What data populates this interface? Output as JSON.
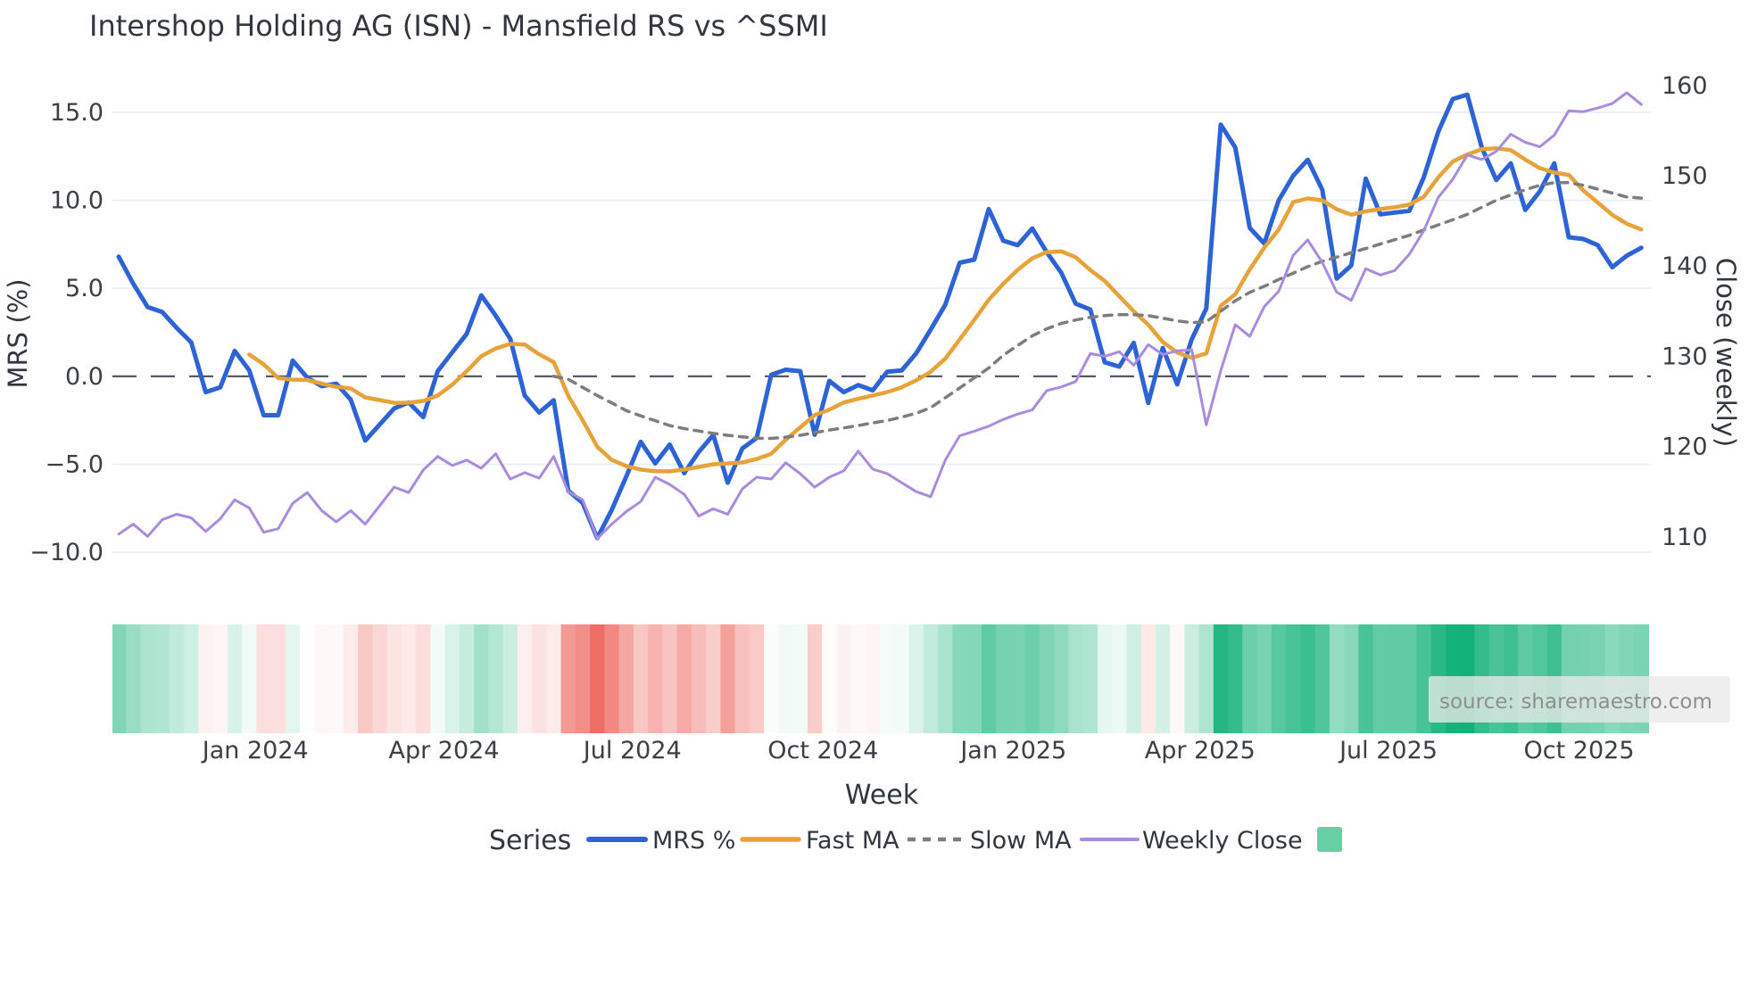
{
  "title": "Intershop Holding AG (ISN) - Mansfield RS vs ^SSMI",
  "source_label": "source: sharemaestro.com",
  "legend": {
    "title": "Series",
    "items": [
      {
        "label": "MRS %",
        "color": "#2c63d5",
        "style": "solid",
        "width": 5
      },
      {
        "label": "Fast MA",
        "color": "#e7a33a",
        "style": "solid",
        "width": 4.5
      },
      {
        "label": "Slow MA",
        "color": "#7d7d7d",
        "style": "dotted",
        "width": 3.5
      },
      {
        "label": "Weekly Close",
        "color": "#a98bdf",
        "style": "solid",
        "width": 3
      }
    ],
    "heat_swatch_color": "#68cfa4"
  },
  "chart_data": {
    "type": "line",
    "title": "Intershop Holding AG (ISN) - Mansfield RS vs ^SSMI",
    "xlabel": "Week",
    "ylabel_left": "MRS (%)",
    "ylabel_right": "Close (weekly)",
    "x_weeks": [
      "2023-10-27",
      "2023-11-03",
      "2023-11-10",
      "2023-11-17",
      "2023-11-24",
      "2023-12-01",
      "2023-12-08",
      "2023-12-15",
      "2023-12-22",
      "2023-12-29",
      "2024-01-05",
      "2024-01-12",
      "2024-01-19",
      "2024-01-26",
      "2024-02-02",
      "2024-02-09",
      "2024-02-16",
      "2024-02-23",
      "2024-03-01",
      "2024-03-08",
      "2024-03-15",
      "2024-03-22",
      "2024-03-29",
      "2024-04-05",
      "2024-04-12",
      "2024-04-19",
      "2024-04-26",
      "2024-05-03",
      "2024-05-10",
      "2024-05-17",
      "2024-05-24",
      "2024-05-31",
      "2024-06-07",
      "2024-06-14",
      "2024-06-21",
      "2024-06-28",
      "2024-07-05",
      "2024-07-12",
      "2024-07-19",
      "2024-07-26",
      "2024-08-02",
      "2024-08-09",
      "2024-08-16",
      "2024-08-23",
      "2024-08-30",
      "2024-09-06",
      "2024-09-13",
      "2024-09-20",
      "2024-09-27",
      "2024-10-04",
      "2024-10-11",
      "2024-10-18",
      "2024-10-25",
      "2024-11-01",
      "2024-11-08",
      "2024-11-15",
      "2024-11-22",
      "2024-11-29",
      "2024-12-06",
      "2024-12-13",
      "2024-12-20",
      "2024-12-27",
      "2025-01-03",
      "2025-01-10",
      "2025-01-17",
      "2025-01-24",
      "2025-01-31",
      "2025-02-07",
      "2025-02-14",
      "2025-02-21",
      "2025-02-28",
      "2025-03-07",
      "2025-03-14",
      "2025-03-21",
      "2025-03-28",
      "2025-04-04",
      "2025-04-11",
      "2025-04-18",
      "2025-04-25",
      "2025-05-02",
      "2025-05-09",
      "2025-05-16",
      "2025-05-23",
      "2025-05-30",
      "2025-06-06",
      "2025-06-13",
      "2025-06-20",
      "2025-06-27",
      "2025-07-04",
      "2025-07-11",
      "2025-07-18",
      "2025-07-25",
      "2025-08-01",
      "2025-08-08",
      "2025-08-15",
      "2025-08-22",
      "2025-08-29",
      "2025-09-05",
      "2025-09-12",
      "2025-09-19",
      "2025-09-26",
      "2025-10-03",
      "2025-10-10",
      "2025-10-17",
      "2025-10-24",
      "2025-10-31"
    ],
    "x_tick_labels": [
      "Jan 2024",
      "Apr 2024",
      "Jul 2024",
      "Oct 2024",
      "Jan 2025",
      "Apr 2025",
      "Jul 2025",
      "Oct 2025"
    ],
    "x_tick_positions_weeks": [
      9.43,
      22.43,
      35.43,
      48.57,
      61.71,
      74.57,
      87.57,
      100.71
    ],
    "left_axis": {
      "ticks": [
        15.0,
        10.0,
        5.0,
        0.0,
        -5.0,
        -10.0
      ],
      "range": [
        -12.17,
        17.07
      ],
      "zero_line": true
    },
    "right_axis": {
      "ticks": [
        160,
        150,
        140,
        130,
        120,
        110
      ],
      "range": [
        104.05,
        161.07
      ]
    },
    "grid_color": "#e9eef6",
    "zero_line_color": "#565b63",
    "series": [
      {
        "name": "MRS %",
        "axis": "left",
        "color": "#2c63d5",
        "style": "solid",
        "width": 5,
        "values": [
          6.8,
          5.26,
          3.93,
          3.65,
          2.75,
          1.93,
          -0.9,
          -0.63,
          1.44,
          0.34,
          -2.21,
          -2.21,
          0.89,
          -0.08,
          -0.56,
          -0.42,
          -1.32,
          -3.65,
          -2.74,
          -1.82,
          -1.49,
          -2.32,
          0.29,
          1.36,
          2.41,
          4.6,
          3.45,
          2.13,
          -1.09,
          -2.06,
          -1.36,
          -6.5,
          -7.2,
          -9.19,
          -7.6,
          -5.7,
          -3.72,
          -4.95,
          -3.88,
          -5.5,
          -4.3,
          -3.33,
          -6.05,
          -4.1,
          -3.5,
          0.09,
          0.37,
          0.29,
          -3.32,
          -0.26,
          -0.9,
          -0.5,
          -0.8,
          0.26,
          0.33,
          1.31,
          2.66,
          4.06,
          6.45,
          6.63,
          9.5,
          7.7,
          7.45,
          8.4,
          7.05,
          5.88,
          4.12,
          3.8,
          0.8,
          0.55,
          1.9,
          -1.52,
          1.61,
          -0.46,
          2.1,
          3.85,
          14.3,
          13.0,
          8.43,
          7.55,
          10.0,
          11.4,
          12.3,
          10.6,
          5.55,
          6.3,
          11.23,
          9.2,
          9.3,
          9.4,
          11.3,
          13.9,
          15.75,
          16.0,
          13.0,
          11.15,
          12.1,
          9.45,
          10.5,
          12.1,
          7.9,
          7.8,
          7.45,
          6.2,
          6.85,
          7.3
        ]
      },
      {
        "name": "Fast MA",
        "axis": "left",
        "color": "#e7a33a",
        "style": "solid",
        "width": 4.5,
        "values": [
          null,
          null,
          null,
          null,
          null,
          null,
          null,
          null,
          null,
          1.24,
          0.68,
          -0.1,
          -0.19,
          -0.21,
          -0.42,
          -0.6,
          -0.69,
          -1.2,
          -1.35,
          -1.51,
          -1.5,
          -1.4,
          -1.09,
          -0.48,
          0.29,
          1.14,
          1.58,
          1.84,
          1.8,
          1.25,
          0.81,
          -1.1,
          -2.5,
          -4.0,
          -4.75,
          -5.1,
          -5.3,
          -5.4,
          -5.4,
          -5.3,
          -5.15,
          -5.0,
          -4.95,
          -4.9,
          -4.7,
          -4.4,
          -3.6,
          -2.9,
          -2.2,
          -1.9,
          -1.49,
          -1.28,
          -1.09,
          -0.9,
          -0.62,
          -0.23,
          0.26,
          1.0,
          2.1,
          3.2,
          4.35,
          5.25,
          6.05,
          6.7,
          7.05,
          7.1,
          6.76,
          6.04,
          5.42,
          4.55,
          3.69,
          2.93,
          1.95,
          1.35,
          1.05,
          1.3,
          4.0,
          4.66,
          6.07,
          7.31,
          8.34,
          9.9,
          10.1,
          10.0,
          9.49,
          9.18,
          9.37,
          9.5,
          9.6,
          9.75,
          10.2,
          11.3,
          12.2,
          12.6,
          12.9,
          12.95,
          12.85,
          12.31,
          11.83,
          11.57,
          11.44,
          10.56,
          9.87,
          9.17,
          8.67,
          8.34
        ]
      },
      {
        "name": "Slow MA",
        "axis": "left",
        "color": "#7d7d7d",
        "style": "dotted",
        "width": 3.5,
        "values": [
          null,
          null,
          null,
          null,
          null,
          null,
          null,
          null,
          null,
          null,
          null,
          null,
          null,
          null,
          null,
          null,
          null,
          null,
          null,
          null,
          null,
          null,
          null,
          null,
          null,
          null,
          null,
          null,
          null,
          null,
          0.0,
          -0.17,
          -0.63,
          -1.09,
          -1.51,
          -1.95,
          -2.25,
          -2.52,
          -2.8,
          -2.97,
          -3.11,
          -3.24,
          -3.35,
          -3.44,
          -3.52,
          -3.53,
          -3.46,
          -3.35,
          -3.2,
          -3.06,
          -2.93,
          -2.8,
          -2.65,
          -2.51,
          -2.32,
          -2.1,
          -1.78,
          -1.22,
          -0.66,
          -0.09,
          0.47,
          1.2,
          1.75,
          2.3,
          2.7,
          3.0,
          3.2,
          3.35,
          3.45,
          3.5,
          3.5,
          3.45,
          3.3,
          3.15,
          3.05,
          3.1,
          3.7,
          4.29,
          4.77,
          5.11,
          5.5,
          5.86,
          6.23,
          6.53,
          6.77,
          7.02,
          7.26,
          7.51,
          7.76,
          8.01,
          8.31,
          8.6,
          8.89,
          9.2,
          9.6,
          10.0,
          10.3,
          10.6,
          10.85,
          11.0,
          11.0,
          10.85,
          10.63,
          10.41,
          10.19,
          10.12
        ]
      },
      {
        "name": "Weekly Close",
        "axis": "right",
        "color": "#a98bdf",
        "style": "solid",
        "width": 3,
        "values": [
          110.3,
          111.4,
          110.05,
          111.9,
          112.5,
          112.1,
          110.6,
          112.0,
          114.1,
          113.2,
          110.5,
          110.9,
          113.7,
          114.9,
          112.9,
          111.65,
          112.9,
          111.4,
          113.45,
          115.5,
          114.9,
          117.4,
          118.9,
          117.9,
          118.5,
          117.6,
          119.2,
          116.4,
          117.1,
          116.5,
          118.9,
          115.0,
          114.1,
          109.8,
          111.4,
          112.8,
          113.9,
          116.6,
          115.8,
          114.7,
          112.3,
          113.1,
          112.5,
          115.3,
          116.6,
          116.4,
          118.2,
          117.0,
          115.5,
          116.6,
          117.3,
          119.5,
          117.5,
          117.0,
          116.0,
          115.0,
          114.45,
          118.5,
          121.2,
          121.7,
          122.25,
          123.0,
          123.6,
          124.05,
          126.2,
          126.6,
          127.2,
          130.3,
          130.0,
          130.5,
          129.0,
          131.3,
          130.2,
          130.6,
          130.7,
          122.4,
          128.4,
          133.5,
          132.2,
          135.5,
          137.2,
          141.2,
          142.9,
          140.4,
          137.1,
          136.2,
          139.7,
          139.0,
          139.5,
          141.3,
          143.9,
          147.6,
          149.6,
          152.3,
          151.8,
          152.7,
          154.6,
          153.7,
          153.2,
          154.5,
          157.2,
          157.1,
          157.5,
          158.0,
          159.2,
          157.9
        ]
      }
    ],
    "heatmap": {
      "basis": "MRS %",
      "positive_color": "#12b177",
      "negative_color": "#ec6057",
      "positive_saturation_at": 16.0,
      "negative_saturation_at": 10.0
    }
  }
}
